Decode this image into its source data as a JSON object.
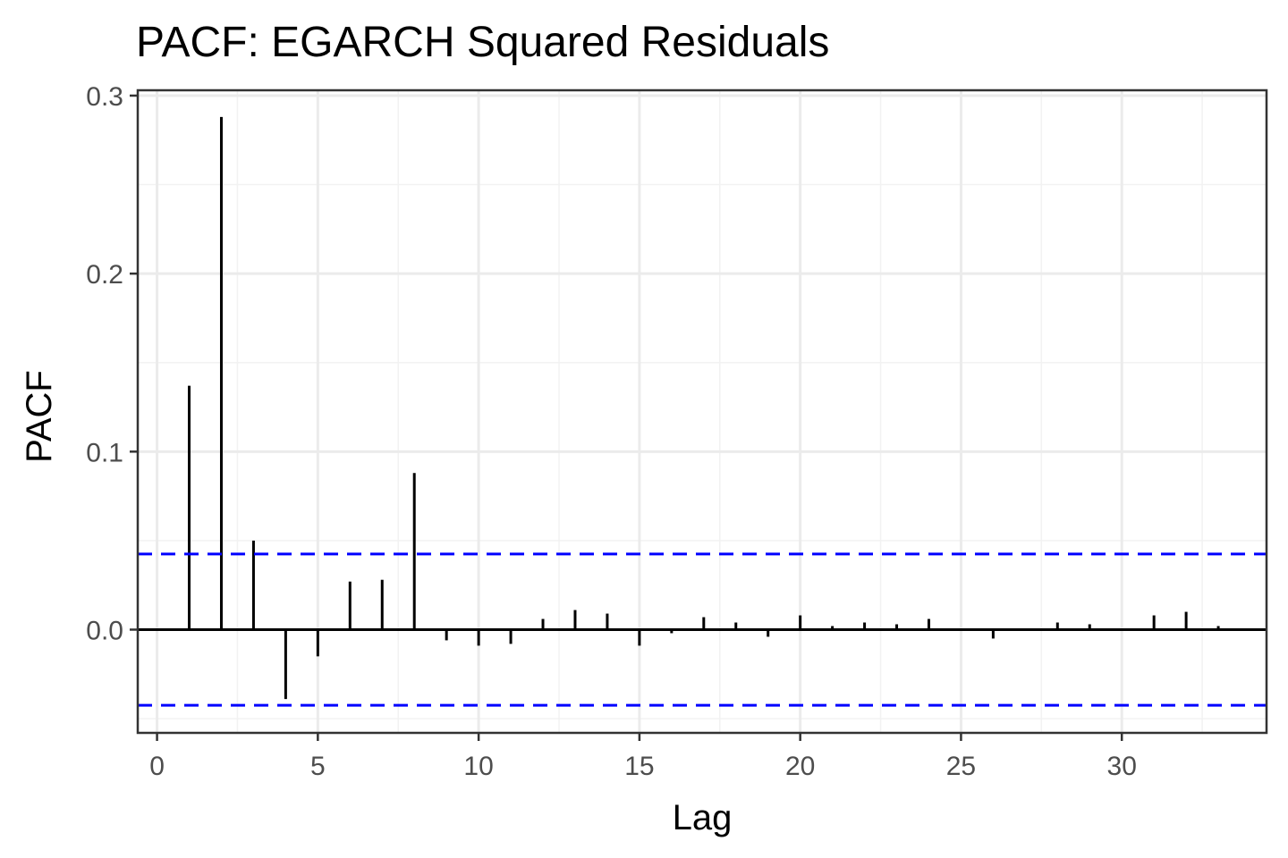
{
  "chart_data": {
    "type": "bar",
    "subtype": "pacf-stem",
    "title": "PACF: EGARCH Squared Residuals",
    "xlabel": "Lag",
    "ylabel": "PACF",
    "xlim": [
      -0.6,
      34.5
    ],
    "ylim": [
      -0.058,
      0.303
    ],
    "x_ticks": [
      0,
      5,
      10,
      15,
      20,
      25,
      30
    ],
    "x_tick_labels": [
      "0",
      "5",
      "10",
      "15",
      "20",
      "25",
      "30"
    ],
    "y_ticks": [
      0.0,
      0.1,
      0.2,
      0.3
    ],
    "y_tick_labels": [
      "0.0",
      "0.1",
      "0.2",
      "0.3"
    ],
    "grid": true,
    "zero_line": 0.0,
    "confidence_band": {
      "upper": 0.0425,
      "lower": -0.0425,
      "color": "#0000ff",
      "style": "dashed"
    },
    "bar_color": "#000000",
    "x": [
      1,
      2,
      3,
      4,
      5,
      6,
      7,
      8,
      9,
      10,
      11,
      12,
      13,
      14,
      15,
      16,
      17,
      18,
      19,
      20,
      21,
      22,
      23,
      24,
      25,
      26,
      27,
      28,
      29,
      30,
      31,
      32,
      33
    ],
    "values": [
      0.137,
      0.288,
      0.05,
      -0.039,
      -0.015,
      0.027,
      0.028,
      0.088,
      -0.006,
      -0.009,
      -0.008,
      0.006,
      0.011,
      0.009,
      -0.009,
      -0.002,
      0.007,
      0.004,
      -0.004,
      0.008,
      0.002,
      0.004,
      0.003,
      0.006,
      0.0,
      -0.005,
      0.0,
      0.004,
      0.003,
      0.0,
      0.008,
      0.01,
      0.002
    ]
  }
}
